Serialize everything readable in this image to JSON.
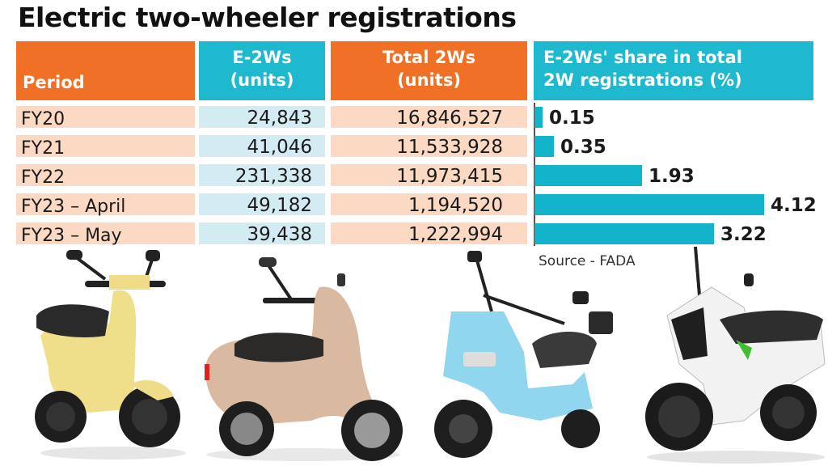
{
  "title": "Electric two-wheeler registrations",
  "table": {
    "headers": {
      "period": [
        "Period"
      ],
      "e2w": [
        "E-2Ws",
        "(units)"
      ],
      "total": [
        "Total 2Ws",
        "(units)"
      ],
      "share": [
        "E-2Ws' share in total",
        "2W registrations (%)"
      ]
    },
    "rows": [
      {
        "period": "FY20",
        "e2w": "24,843",
        "total": "16,846,527",
        "share": "0.15"
      },
      {
        "period": "FY21",
        "e2w": "41,046",
        "total": "11,533,928",
        "share": "0.35"
      },
      {
        "period": "FY22",
        "e2w": "231,338",
        "total": "11,973,415",
        "share": "1.93"
      },
      {
        "period": "FY23 – April",
        "e2w": "49,182",
        "total": "1,194,520",
        "share": "4.12"
      },
      {
        "period": "FY23 – May",
        "e2w": "39,438",
        "total": "1,222,994",
        "share": "3.22"
      }
    ]
  },
  "source": "Source - FADA",
  "colors": {
    "header_orange": "#f07025",
    "header_teal": "#1fb9cf",
    "row_peach": "#fcd9c3",
    "row_lightblue": "#d3ebf2",
    "bar": "#12b3cb"
  },
  "images": [
    {
      "name": "yellow-scooter",
      "color": "#f0df8a"
    },
    {
      "name": "beige-scooter",
      "color": "#d9b9a0"
    },
    {
      "name": "light-blue-scooter",
      "color": "#8fd6ee"
    },
    {
      "name": "white-scooter",
      "color": "#f2f2f2"
    }
  ],
  "chart_data": {
    "type": "table",
    "title": "Electric two-wheeler registrations",
    "columns": [
      "Period",
      "E-2Ws (units)",
      "Total 2Ws (units)",
      "E-2Ws' share in total 2W registrations (%)"
    ],
    "categories": [
      "FY20",
      "FY21",
      "FY22",
      "FY23 – April",
      "FY23 – May"
    ],
    "series": [
      {
        "name": "E-2Ws (units)",
        "values": [
          24843,
          41046,
          231338,
          49182,
          39438
        ]
      },
      {
        "name": "Total 2Ws (units)",
        "values": [
          16846527,
          11533928,
          11973415,
          1194520,
          1222994
        ]
      },
      {
        "name": "E-2Ws' share in total 2W registrations (%)",
        "values": [
          0.15,
          0.35,
          1.93,
          4.12,
          3.22
        ],
        "render": "horizontal-bar"
      }
    ],
    "annotations": [
      "Source - FADA"
    ]
  }
}
